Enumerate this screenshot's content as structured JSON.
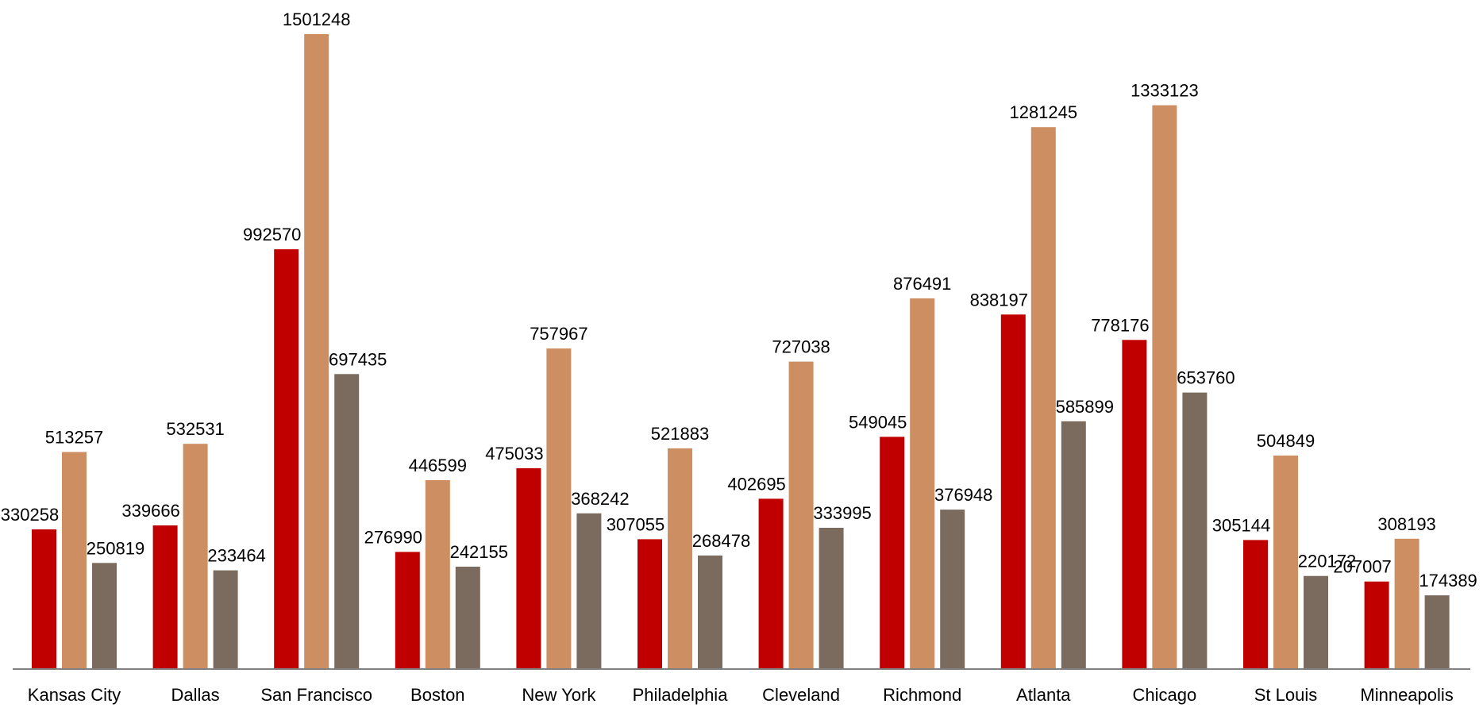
{
  "chart_data": {
    "type": "bar",
    "title": "",
    "xlabel": "",
    "ylabel": "",
    "ylim": [
      0,
      1501248
    ],
    "grid": false,
    "legend": "none",
    "categories": [
      "Kansas City",
      "Dallas",
      "San Francisco",
      "Boston",
      "New York",
      "Philadelphia",
      "Cleveland",
      "Richmond",
      "Atlanta",
      "Chicago",
      "St Louis",
      "Minneapolis"
    ],
    "series": [
      {
        "color": "#c00000",
        "values": [
          330258,
          339666,
          992570,
          276990,
          475033,
          307055,
          402695,
          549045,
          838197,
          778176,
          305144,
          207007
        ]
      },
      {
        "color": "#cd8e62",
        "values": [
          513257,
          532531,
          1501248,
          446599,
          757967,
          521883,
          727038,
          876491,
          1281245,
          1333123,
          504849,
          308193
        ]
      },
      {
        "color": "#7b6b5e",
        "values": [
          250819,
          233464,
          697435,
          242155,
          368242,
          268478,
          333995,
          376948,
          585899,
          653760,
          220172,
          174389
        ]
      }
    ]
  }
}
